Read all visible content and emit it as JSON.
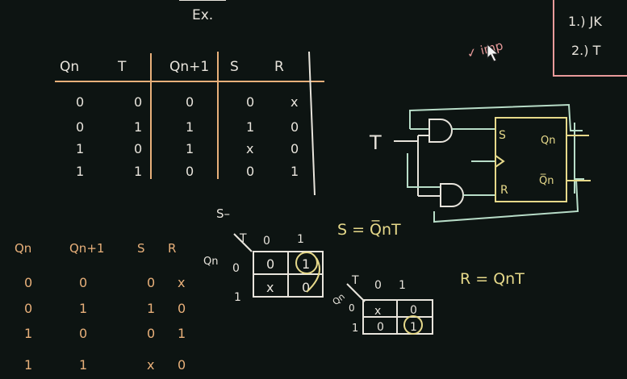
{
  "header": {
    "ex_label": "Ex.",
    "imp_note": "✓ imp"
  },
  "topright": {
    "item1": "1.) JK",
    "item2": "2.) T"
  },
  "truth_table": {
    "headers": [
      "Qn",
      "T",
      "Qn+1",
      "S",
      "R"
    ],
    "rows": [
      [
        "0",
        "0",
        "0",
        "0",
        "x"
      ],
      [
        "0",
        "1",
        "1",
        "1",
        "0"
      ],
      [
        "1",
        "0",
        "1",
        "x",
        "0"
      ],
      [
        "1",
        "1",
        "0",
        "0",
        "1"
      ]
    ]
  },
  "excitation_table": {
    "headers": [
      "Qn",
      "Qn+1",
      "S",
      "R"
    ],
    "rows": [
      [
        "0",
        "0",
        "0",
        "x"
      ],
      [
        "0",
        "1",
        "1",
        "0"
      ],
      [
        "1",
        "0",
        "0",
        "1"
      ],
      [
        "1",
        "1",
        "x",
        "0"
      ]
    ]
  },
  "kmap_s": {
    "label": "S–",
    "col_var": "T",
    "row_var": "Qn",
    "col_heads": [
      "0",
      "1"
    ],
    "row_heads": [
      "0",
      "1"
    ],
    "cells": [
      [
        "0",
        "1"
      ],
      [
        "x",
        "0"
      ]
    ]
  },
  "kmap_r": {
    "col_var": "T",
    "row_var": "Qn",
    "col_heads": [
      "0",
      "1"
    ],
    "row_heads": [
      "0",
      "1"
    ],
    "cells": [
      [
        "x",
        "0"
      ],
      [
        "0",
        "1"
      ]
    ]
  },
  "equations": {
    "s_eq": "S = Q̅nT",
    "r_eq": "R = QnT"
  },
  "circuit": {
    "input": "T",
    "pin_s": "S",
    "pin_r": "R",
    "out_q": "Qn",
    "out_qbar": "Q̅n"
  },
  "colors": {
    "board": "#0d1412",
    "chalk_white": "#e8e4dc",
    "chalk_orange": "#e8b07a",
    "chalk_yellow": "#e6d98a",
    "chalk_green": "#b8ddc8",
    "chalk_red": "#e89a9a"
  }
}
